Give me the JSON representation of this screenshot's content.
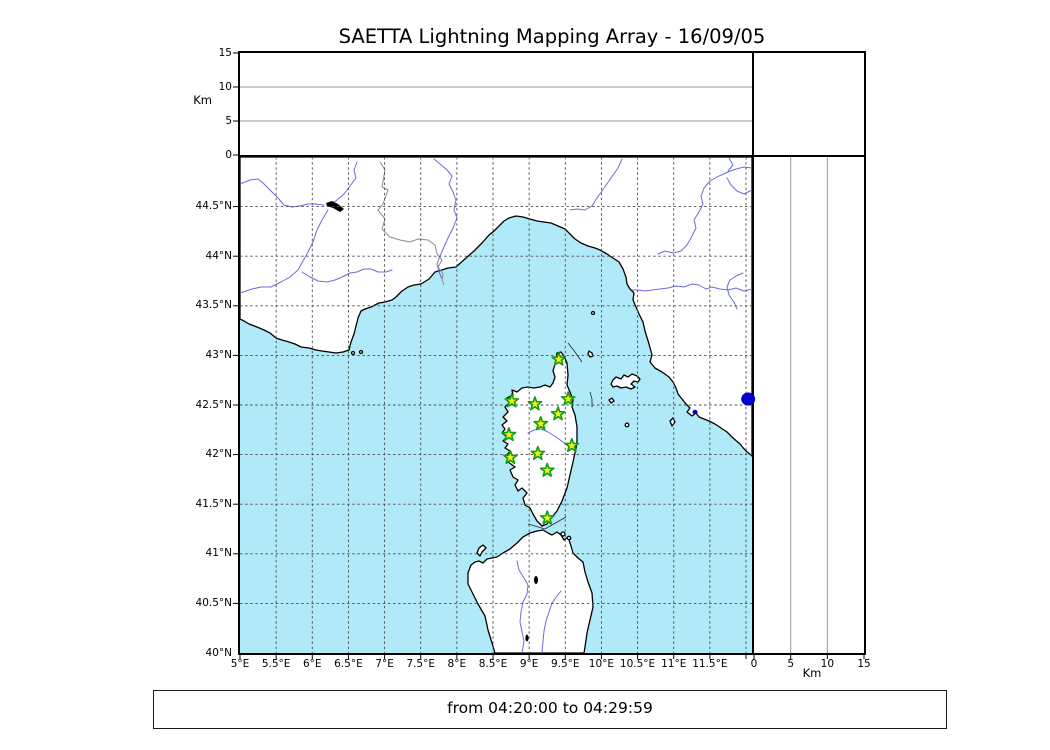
{
  "title": "SAETTA Lightning Mapping Array - 16/09/05",
  "footer": "from 04:20:00 to 04:29:59",
  "colors": {
    "sea": "#b0e9f8",
    "land": "#ffffff",
    "coast": "#000000",
    "river": "#6b6be0",
    "country_border": "#8a8a8a",
    "grid": "#4d4d4d",
    "panel_gridline": "#9a9a9a",
    "station_fill": "#f5ee17",
    "station_stroke": "#0f9e0f",
    "source_point": "#0000cc",
    "lake": "#000000",
    "lagoon": "#0000bb"
  },
  "chart_data": {
    "type": "scatter",
    "subtype": "lightning-mapping-array-map",
    "title": "SAETTA Lightning Mapping Array - 16/09/05",
    "time_window": {
      "label": "from 04:20:00 to 04:29:59",
      "from": "04:20:00",
      "to": "04:29:59"
    },
    "lon_axis": {
      "range": [
        5,
        12.083
      ],
      "tick_values": [
        5,
        5.5,
        6,
        6.5,
        7,
        7.5,
        8,
        8.5,
        9,
        9.5,
        10,
        10.5,
        11,
        11.5
      ],
      "tick_labels": [
        "5°E",
        "5.5°E",
        "6°E",
        "6.5°E",
        "7°E",
        "7.5°E",
        "8°E",
        "8.5°E",
        "9°E",
        "9.5°E",
        "10°E",
        "10.5°E",
        "11°E",
        "11.5°E"
      ]
    },
    "lat_axis": {
      "range": [
        40,
        45
      ],
      "tick_values": [
        44.5,
        44,
        43.5,
        43,
        42.5,
        42,
        41.5,
        41,
        40.5,
        40
      ],
      "tick_labels": [
        "44.5°N",
        "44°N",
        "43.5°N",
        "43°N",
        "42.5°N",
        "42°N",
        "41.5°N",
        "41°N",
        "40.5°N",
        "40°N"
      ]
    },
    "alt_axis": {
      "range_km": [
        0,
        15
      ],
      "tick_values": [
        0,
        5,
        10,
        15
      ],
      "unit": "Km"
    },
    "grid": "dashed, every 0.5 degree",
    "stations": [
      {
        "lon": 9.41,
        "lat": 42.96
      },
      {
        "lon": 8.76,
        "lat": 42.54
      },
      {
        "lon": 9.08,
        "lat": 42.51
      },
      {
        "lon": 9.54,
        "lat": 42.56
      },
      {
        "lon": 9.4,
        "lat": 42.41
      },
      {
        "lon": 9.16,
        "lat": 42.31
      },
      {
        "lon": 8.72,
        "lat": 42.2
      },
      {
        "lon": 9.59,
        "lat": 42.09
      },
      {
        "lon": 9.12,
        "lat": 42.01
      },
      {
        "lon": 8.74,
        "lat": 41.97
      },
      {
        "lon": 9.25,
        "lat": 41.84
      },
      {
        "lon": 9.25,
        "lat": 41.36
      }
    ],
    "sources": [
      {
        "lon": 12.03,
        "lat": 42.56,
        "alt_km": 0
      }
    ]
  }
}
